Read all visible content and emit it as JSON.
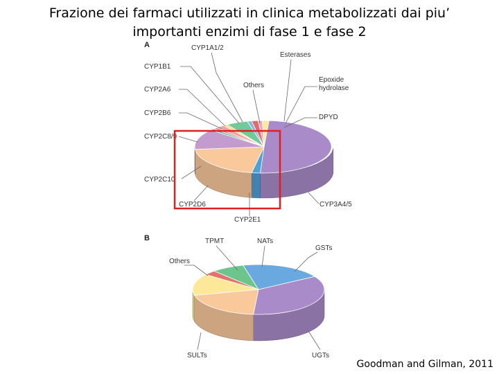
{
  "title_lines": [
    "Frazione dei farmaci utilizzati in clinica metabolizzati dai piu’",
    "importanti enzimi di fase 1 e fase 2"
  ],
  "credit": "Goodman and Gilman, 2011",
  "chart_data": [
    {
      "type": "pie",
      "panel_label": "A",
      "title": "",
      "slices": [
        {
          "label": "CYP3A4/5",
          "value": 49.5,
          "color": "#a88bc8"
        },
        {
          "label": "CYP2E1",
          "value": 2,
          "color": "#4ea0d8"
        },
        {
          "label": "CYP2D6",
          "value": 20.5,
          "color": "#f9c89b"
        },
        {
          "label": "CYP2C10",
          "value": 12.5,
          "color": "#c49bcf"
        },
        {
          "label": "CYP2C8/9",
          "value": 1,
          "color": "#5cc08a"
        },
        {
          "label": "CYP2B6",
          "value": 1,
          "color": "#e88a9a"
        },
        {
          "label": "CYP2A6",
          "value": 2,
          "color": "#f4a3a0"
        },
        {
          "label": "CYP1B1",
          "value": 1,
          "color": "#fbe08a"
        },
        {
          "label": "CYP1A1/2",
          "value": 5,
          "color": "#72c99a"
        },
        {
          "label": "Others",
          "value": 1,
          "color": "#8ab4e8"
        },
        {
          "label": "Esterases",
          "value": 1.5,
          "color": "#e26a6a"
        },
        {
          "label": "Epoxide hydrolase",
          "value": 1,
          "color": "#f0a8c0"
        },
        {
          "label": "DPYD",
          "value": 1.5,
          "color": "#fde89a"
        }
      ]
    },
    {
      "type": "pie",
      "panel_label": "B",
      "title": "",
      "slices": [
        {
          "label": "UGTs",
          "value": 35,
          "color": "#a88bc8"
        },
        {
          "label": "SULTs",
          "value": 20,
          "color": "#f9c89b"
        },
        {
          "label": "Others",
          "value": 14,
          "color": "#fde89a"
        },
        {
          "label": "TPMT",
          "value": 3,
          "color": "#e2726a"
        },
        {
          "label": "NATs",
          "value": 8,
          "color": "#6cc58c"
        },
        {
          "label": "GSTs",
          "value": 20,
          "color": "#6aa8e0"
        }
      ]
    }
  ]
}
